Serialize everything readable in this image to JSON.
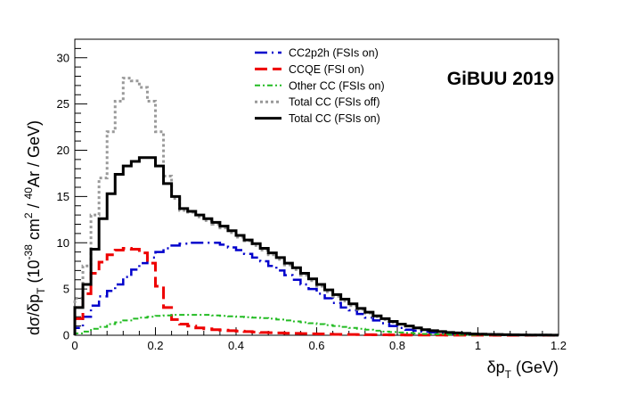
{
  "chart_data": {
    "type": "line",
    "style": "step-histogram",
    "annotation": "GiBUU 2019",
    "xlabel": {
      "main": "δp",
      "sub": "T",
      "rest": " (GeV)"
    },
    "ylabel": {
      "p1": "dσ/δp",
      "sub": "T",
      "p2": " (10",
      "sup1": "-38",
      "p3": " cm",
      "sup2": "2",
      "p4": " / ",
      "sup3": "40",
      "p5": "Ar / GeV)"
    },
    "xlim": [
      0,
      1.2
    ],
    "ylim": [
      0,
      32
    ],
    "x_ticks": [
      0,
      0.2,
      0.4,
      0.6,
      0.8,
      1,
      1.2
    ],
    "x_tick_labels": [
      "0",
      "0.2",
      "0.4",
      "0.6",
      "0.8",
      "1",
      "1.2"
    ],
    "y_ticks": [
      0,
      5,
      10,
      15,
      20,
      25,
      30
    ],
    "y_tick_labels": [
      "0",
      "5",
      "10",
      "15",
      "20",
      "25",
      "30"
    ],
    "bin_edges": [
      0,
      0.02,
      0.04,
      0.06,
      0.08,
      0.1,
      0.12,
      0.14,
      0.16,
      0.18,
      0.2,
      0.22,
      0.24,
      0.26,
      0.28,
      0.3,
      0.32,
      0.34,
      0.36,
      0.38,
      0.4,
      0.42,
      0.44,
      0.46,
      0.48,
      0.5,
      0.52,
      0.54,
      0.56,
      0.58,
      0.6,
      0.62,
      0.64,
      0.66,
      0.68,
      0.7,
      0.72,
      0.74,
      0.76,
      0.78,
      0.8,
      0.82,
      0.84,
      0.86,
      0.88,
      0.9,
      0.92,
      0.94,
      0.96,
      0.98,
      1.0,
      1.02,
      1.04,
      1.06,
      1.08,
      1.1,
      1.12,
      1.14,
      1.16,
      1.18,
      1.2
    ],
    "legend_position": "top-center",
    "series": [
      {
        "name": "CC2p2h (FSIs on)",
        "color": "#0000cc",
        "dash": "14,5,2,5",
        "width": 2.5,
        "values": [
          0.8,
          2.0,
          3.2,
          4.2,
          4.8,
          5.5,
          6.3,
          7.1,
          7.8,
          8.4,
          9.0,
          9.4,
          9.7,
          9.9,
          10.0,
          10.0,
          10.0,
          10.0,
          9.8,
          9.5,
          9.2,
          8.8,
          8.4,
          8.0,
          7.5,
          7.0,
          6.5,
          6.0,
          5.5,
          5.0,
          4.5,
          4.0,
          3.5,
          3.0,
          2.7,
          2.3,
          1.9,
          1.6,
          1.3,
          1.0,
          0.8,
          0.6,
          0.5,
          0.4,
          0.3,
          0.25,
          0.2,
          0.15,
          0.12,
          0.1,
          0.08,
          0.07,
          0.06,
          0.05,
          0.04,
          0.03,
          0.02,
          0.02,
          0.01,
          0.01
        ]
      },
      {
        "name": "CCQE (FSI on)",
        "color": "#ee0000",
        "dash": "14,6",
        "width": 3,
        "values": [
          1.8,
          4.5,
          6.7,
          7.9,
          8.7,
          9.2,
          9.4,
          9.3,
          8.9,
          7.8,
          5.3,
          3.0,
          1.7,
          1.2,
          1.0,
          0.8,
          0.7,
          0.6,
          0.55,
          0.5,
          0.45,
          0.4,
          0.35,
          0.3,
          0.28,
          0.25,
          0.22,
          0.2,
          0.18,
          0.16,
          0.14,
          0.12,
          0.1,
          0.09,
          0.08,
          0.07,
          0.06,
          0.05,
          0.05,
          0.04,
          0.04,
          0.03,
          0.03,
          0.02,
          0.02,
          0.02,
          0.01,
          0.01,
          0.01,
          0.01,
          0.01,
          0.01,
          0.0,
          0.0,
          0.0,
          0.0,
          0.0,
          0.0,
          0.0,
          0.0
        ]
      },
      {
        "name": "Other CC (FSIs on)",
        "color": "#22bb22",
        "dash": "6,3,2,3",
        "width": 2,
        "values": [
          0.2,
          0.4,
          0.7,
          0.9,
          1.2,
          1.4,
          1.6,
          1.8,
          1.9,
          2.0,
          2.1,
          2.15,
          2.2,
          2.2,
          2.2,
          2.2,
          2.2,
          2.15,
          2.1,
          2.05,
          2.0,
          1.95,
          1.9,
          1.85,
          1.8,
          1.7,
          1.6,
          1.5,
          1.4,
          1.3,
          1.2,
          1.1,
          1.0,
          0.9,
          0.8,
          0.7,
          0.6,
          0.5,
          0.4,
          0.35,
          0.3,
          0.25,
          0.2,
          0.15,
          0.12,
          0.1,
          0.08,
          0.06,
          0.05,
          0.04,
          0.03,
          0.02,
          0.02,
          0.01,
          0.01,
          0.01,
          0.0,
          0.0,
          0.0,
          0.0
        ]
      },
      {
        "name": "Total CC (FSIs off)",
        "color": "#999999",
        "dash": "3,3",
        "width": 3,
        "values": [
          4.0,
          7.5,
          13.0,
          17.0,
          22.0,
          25.3,
          27.8,
          27.5,
          26.8,
          25.3,
          22.0,
          17.2,
          14.8,
          13.5,
          13.3,
          12.8,
          12.4,
          12.0,
          11.6,
          11.1,
          10.6,
          10.2,
          9.7,
          9.2,
          8.7,
          8.2,
          7.6,
          7.1,
          6.5,
          5.9,
          5.3,
          4.7,
          4.2,
          3.7,
          3.2,
          2.8,
          2.4,
          2.0,
          1.7,
          1.4,
          1.2,
          1.0,
          0.8,
          0.6,
          0.5,
          0.4,
          0.3,
          0.25,
          0.2,
          0.15,
          0.12,
          0.1,
          0.08,
          0.06,
          0.05,
          0.04,
          0.03,
          0.02,
          0.02,
          0.01
        ]
      },
      {
        "name": "Total CC (FSIs on)",
        "color": "#000000",
        "dash": "",
        "width": 3,
        "values": [
          3.0,
          5.5,
          9.3,
          12.6,
          15.3,
          17.4,
          18.3,
          18.8,
          19.2,
          19.2,
          18.3,
          16.4,
          15.0,
          13.7,
          13.4,
          13.0,
          12.6,
          12.2,
          11.8,
          11.3,
          10.8,
          10.3,
          9.9,
          9.4,
          8.9,
          8.4,
          7.8,
          7.3,
          6.7,
          6.1,
          5.5,
          4.9,
          4.4,
          3.9,
          3.4,
          2.9,
          2.5,
          2.1,
          1.8,
          1.5,
          1.2,
          1.0,
          0.8,
          0.6,
          0.5,
          0.4,
          0.3,
          0.25,
          0.2,
          0.15,
          0.12,
          0.1,
          0.08,
          0.06,
          0.05,
          0.04,
          0.03,
          0.02,
          0.02,
          0.01
        ]
      }
    ]
  }
}
